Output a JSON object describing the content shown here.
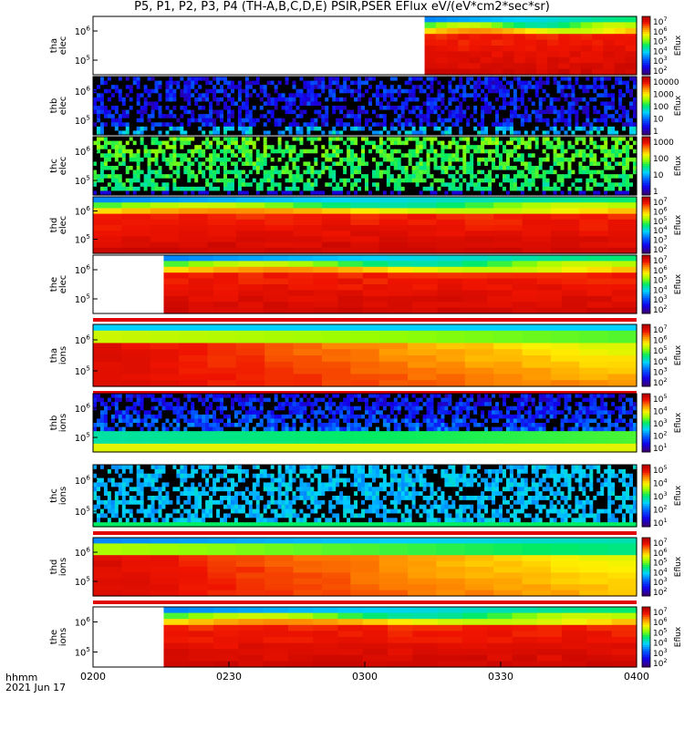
{
  "title": "P5, P1, P2, P3, P4 (TH-A,B,C,D,E) PSIR,PSER EFlux eV/(eV*cm2*sec*sr)",
  "footer": {
    "line1": "hhmm",
    "line2": "2021 Jun 17"
  },
  "chart_data": {
    "type": "heatmap",
    "x_axis": {
      "ticks": [
        "0200",
        "0230",
        "0300",
        "0330",
        "0400"
      ],
      "range": [
        "02:00",
        "04:00"
      ]
    },
    "colorbar_label": "Eflux",
    "panels": [
      {
        "label1": "tha",
        "label2": "elec",
        "yticks": [
          "10^6",
          "10^5"
        ],
        "cbar_ticks": [
          "10^7",
          "10^6",
          "10^5",
          "10^4",
          "10^3",
          "10^2"
        ],
        "data_start_frac": 0.61,
        "style": "gradient_hi",
        "stripe": false
      },
      {
        "label1": "thb",
        "label2": "elec",
        "yticks": [
          "10^6",
          "10^5"
        ],
        "cbar_ticks": [
          "10000",
          "1000",
          "100",
          "10",
          "1"
        ],
        "data_start_frac": 0,
        "style": "noise_blue",
        "stripe": false
      },
      {
        "label1": "thc",
        "label2": "elec",
        "yticks": [
          "10^6",
          "10^5"
        ],
        "cbar_ticks": [
          "1000",
          "100",
          "10",
          "1"
        ],
        "data_start_frac": 0,
        "style": "noise_green",
        "stripe": false
      },
      {
        "label1": "thd",
        "label2": "elec",
        "yticks": [
          "10^6",
          "10^5"
        ],
        "cbar_ticks": [
          "10^7",
          "10^6",
          "10^5",
          "10^4",
          "10^3",
          "10^2"
        ],
        "data_start_frac": 0,
        "style": "gradient_hi",
        "stripe": false
      },
      {
        "label1": "the",
        "label2": "elec",
        "yticks": [
          "10^6",
          "10^5"
        ],
        "cbar_ticks": [
          "10^7",
          "10^6",
          "10^5",
          "10^4",
          "10^3",
          "10^2"
        ],
        "data_start_frac": 0.13,
        "style": "gradient_hi",
        "stripe": true
      },
      {
        "label1": "tha",
        "label2": "ions",
        "yticks": [
          "10^6",
          "10^5"
        ],
        "cbar_ticks": [
          "10^7",
          "10^6",
          "10^5",
          "10^4",
          "10^3",
          "10^2"
        ],
        "data_start_frac": 0,
        "style": "gradient_fade",
        "stripe": true
      },
      {
        "label1": "thb",
        "label2": "ions",
        "yticks": [
          "10^6",
          "10^5"
        ],
        "cbar_ticks": [
          "10^5",
          "10^4",
          "10^3",
          "10^2",
          "10^1"
        ],
        "data_start_frac": 0,
        "style": "noise_purple",
        "stripe": false
      },
      {
        "label1": "thc",
        "label2": "ions",
        "yticks": [
          "10^6",
          "10^5"
        ],
        "cbar_ticks": [
          "10^5",
          "10^4",
          "10^3",
          "10^2",
          "10^1"
        ],
        "data_start_frac": 0,
        "style": "noise_cyan",
        "stripe": true
      },
      {
        "label1": "thd",
        "label2": "ions",
        "yticks": [
          "10^6",
          "10^5"
        ],
        "cbar_ticks": [
          "10^7",
          "10^6",
          "10^5",
          "10^4",
          "10^3",
          "10^2"
        ],
        "data_start_frac": 0,
        "style": "gradient_fade2",
        "stripe": true
      },
      {
        "label1": "the",
        "label2": "ions",
        "yticks": [
          "10^6",
          "10^5"
        ],
        "cbar_ticks": [
          "10^7",
          "10^6",
          "10^5",
          "10^4",
          "10^3",
          "10^2"
        ],
        "data_start_frac": 0.13,
        "style": "gradient_hi",
        "stripe": false
      }
    ]
  }
}
